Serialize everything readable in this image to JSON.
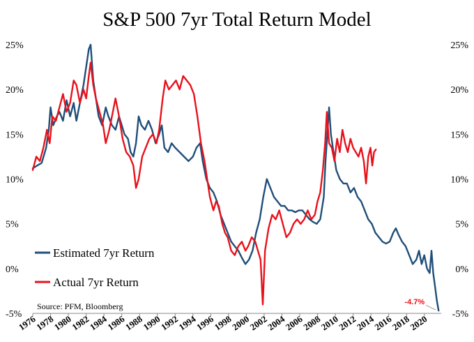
{
  "chart_data": {
    "type": "line",
    "title": "S&P 500 7yr Total Return Model",
    "source": "Source: PFM, Bloomberg",
    "xlabel": "",
    "ylabel": "",
    "ylim": [
      -5,
      25
    ],
    "xlim": [
      1976,
      2021.9
    ],
    "grid": false,
    "legend_position": "bottom-left",
    "y_ticks": [
      "-5%",
      "0%",
      "5%",
      "10%",
      "15%",
      "20%",
      "25%"
    ],
    "x_ticks": [
      "1976",
      "1978",
      "1980",
      "1982",
      "1984",
      "1986",
      "1988",
      "1990",
      "1992",
      "1994",
      "1996",
      "1998",
      "2000",
      "2002",
      "2004",
      "2006",
      "2008",
      "2010",
      "2012",
      "2014",
      "2016",
      "2018",
      "2020"
    ],
    "annotation": {
      "text": "-4.7%",
      "x": 2021.6,
      "y": -4.7,
      "color": "#e8111b"
    },
    "series": [
      {
        "name": "Estimated 7yr Return",
        "color": "#1f4e79",
        "points": [
          [
            1976.0,
            11.2
          ],
          [
            1976.5,
            11.5
          ],
          [
            1977.0,
            11.8
          ],
          [
            1977.5,
            13.5
          ],
          [
            1977.8,
            15.5
          ],
          [
            1978.0,
            18.0
          ],
          [
            1978.3,
            16.0
          ],
          [
            1978.7,
            17.0
          ],
          [
            1979.0,
            17.5
          ],
          [
            1979.4,
            16.5
          ],
          [
            1979.8,
            18.8
          ],
          [
            1980.2,
            17.0
          ],
          [
            1980.6,
            18.5
          ],
          [
            1980.9,
            16.5
          ],
          [
            1981.3,
            18.5
          ],
          [
            1981.7,
            20.5
          ],
          [
            1982.0,
            22.5
          ],
          [
            1982.3,
            24.5
          ],
          [
            1982.5,
            25.0
          ],
          [
            1982.8,
            21.0
          ],
          [
            1983.1,
            19.0
          ],
          [
            1983.4,
            17.0
          ],
          [
            1983.8,
            16.0
          ],
          [
            1984.2,
            18.0
          ],
          [
            1984.5,
            17.0
          ],
          [
            1984.9,
            16.0
          ],
          [
            1985.3,
            15.5
          ],
          [
            1985.7,
            17.0
          ],
          [
            1986.0,
            16.0
          ],
          [
            1986.3,
            15.0
          ],
          [
            1986.7,
            14.5
          ],
          [
            1987.0,
            13.0
          ],
          [
            1987.3,
            12.5
          ],
          [
            1987.6,
            14.0
          ],
          [
            1987.9,
            17.0
          ],
          [
            1988.2,
            16.0
          ],
          [
            1988.6,
            15.5
          ],
          [
            1989.0,
            16.5
          ],
          [
            1989.4,
            15.5
          ],
          [
            1989.8,
            14.0
          ],
          [
            1990.2,
            15.0
          ],
          [
            1990.5,
            16.0
          ],
          [
            1990.8,
            13.5
          ],
          [
            1991.2,
            13.0
          ],
          [
            1991.6,
            14.0
          ],
          [
            1992.0,
            13.5
          ],
          [
            1992.5,
            13.0
          ],
          [
            1993.0,
            12.5
          ],
          [
            1993.5,
            12.0
          ],
          [
            1994.0,
            12.5
          ],
          [
            1994.4,
            13.5
          ],
          [
            1994.8,
            14.0
          ],
          [
            1995.1,
            12.0
          ],
          [
            1995.5,
            10.0
          ],
          [
            1995.9,
            9.0
          ],
          [
            1996.3,
            8.5
          ],
          [
            1996.7,
            7.5
          ],
          [
            1997.1,
            6.0
          ],
          [
            1997.5,
            5.0
          ],
          [
            1997.9,
            4.0
          ],
          [
            1998.3,
            3.0
          ],
          [
            1998.7,
            2.5
          ],
          [
            1999.1,
            2.0
          ],
          [
            1999.5,
            1.2
          ],
          [
            1999.9,
            0.5
          ],
          [
            2000.3,
            1.0
          ],
          [
            2000.7,
            2.0
          ],
          [
            2001.1,
            4.0
          ],
          [
            2001.5,
            5.5
          ],
          [
            2001.9,
            8.0
          ],
          [
            2002.3,
            10.0
          ],
          [
            2002.7,
            9.0
          ],
          [
            2003.1,
            8.0
          ],
          [
            2003.5,
            7.5
          ],
          [
            2003.9,
            7.0
          ],
          [
            2004.3,
            7.0
          ],
          [
            2004.7,
            6.5
          ],
          [
            2005.1,
            6.5
          ],
          [
            2005.5,
            6.3
          ],
          [
            2005.9,
            6.5
          ],
          [
            2006.3,
            6.5
          ],
          [
            2006.7,
            6.0
          ],
          [
            2007.1,
            5.5
          ],
          [
            2007.5,
            5.2
          ],
          [
            2007.9,
            5.0
          ],
          [
            2008.3,
            5.5
          ],
          [
            2008.7,
            8.0
          ],
          [
            2008.9,
            12.0
          ],
          [
            2009.1,
            15.0
          ],
          [
            2009.3,
            18.0
          ],
          [
            2009.5,
            15.0
          ],
          [
            2009.8,
            13.0
          ],
          [
            2010.1,
            11.0
          ],
          [
            2010.5,
            10.0
          ],
          [
            2010.9,
            9.5
          ],
          [
            2011.3,
            9.5
          ],
          [
            2011.7,
            8.5
          ],
          [
            2012.1,
            9.0
          ],
          [
            2012.5,
            8.0
          ],
          [
            2012.9,
            7.5
          ],
          [
            2013.3,
            6.5
          ],
          [
            2013.7,
            5.5
          ],
          [
            2014.1,
            5.0
          ],
          [
            2014.5,
            4.0
          ],
          [
            2014.9,
            3.5
          ],
          [
            2015.3,
            3.0
          ],
          [
            2015.7,
            2.8
          ],
          [
            2016.1,
            3.0
          ],
          [
            2016.5,
            4.0
          ],
          [
            2016.8,
            4.5
          ],
          [
            2017.1,
            3.8
          ],
          [
            2017.5,
            3.0
          ],
          [
            2017.9,
            2.5
          ],
          [
            2018.3,
            1.5
          ],
          [
            2018.7,
            0.5
          ],
          [
            2019.1,
            1.0
          ],
          [
            2019.4,
            2.0
          ],
          [
            2019.7,
            0.5
          ],
          [
            2020.0,
            1.5
          ],
          [
            2020.3,
            0.0
          ],
          [
            2020.6,
            -0.5
          ],
          [
            2020.8,
            2.0
          ],
          [
            2021.0,
            -0.5
          ],
          [
            2021.2,
            -2.0
          ],
          [
            2021.4,
            -3.5
          ],
          [
            2021.6,
            -4.7
          ]
        ]
      },
      {
        "name": "Actual 7yr Return",
        "color": "#e8111b",
        "points": [
          [
            1976.0,
            11.0
          ],
          [
            1976.4,
            12.5
          ],
          [
            1976.8,
            12.0
          ],
          [
            1977.2,
            13.5
          ],
          [
            1977.6,
            15.5
          ],
          [
            1977.9,
            14.0
          ],
          [
            1978.2,
            17.0
          ],
          [
            1978.6,
            16.5
          ],
          [
            1979.0,
            18.0
          ],
          [
            1979.4,
            19.5
          ],
          [
            1979.8,
            17.5
          ],
          [
            1980.2,
            18.5
          ],
          [
            1980.6,
            21.0
          ],
          [
            1980.9,
            20.5
          ],
          [
            1981.3,
            18.5
          ],
          [
            1981.7,
            20.0
          ],
          [
            1982.0,
            19.0
          ],
          [
            1982.3,
            21.5
          ],
          [
            1982.5,
            23.0
          ],
          [
            1982.8,
            20.5
          ],
          [
            1983.1,
            19.0
          ],
          [
            1983.5,
            17.5
          ],
          [
            1983.9,
            16.0
          ],
          [
            1984.2,
            14.0
          ],
          [
            1984.6,
            15.5
          ],
          [
            1985.0,
            17.5
          ],
          [
            1985.3,
            19.0
          ],
          [
            1985.7,
            17.0
          ],
          [
            1986.1,
            14.5
          ],
          [
            1986.5,
            13.0
          ],
          [
            1986.9,
            12.5
          ],
          [
            1987.3,
            11.5
          ],
          [
            1987.6,
            9.0
          ],
          [
            1987.9,
            10.0
          ],
          [
            1988.3,
            12.5
          ],
          [
            1988.7,
            13.5
          ],
          [
            1989.1,
            14.5
          ],
          [
            1989.5,
            15.0
          ],
          [
            1989.9,
            14.0
          ],
          [
            1990.2,
            15.5
          ],
          [
            1990.6,
            19.0
          ],
          [
            1990.9,
            21.0
          ],
          [
            1991.3,
            20.0
          ],
          [
            1991.7,
            20.5
          ],
          [
            1992.1,
            21.0
          ],
          [
            1992.5,
            20.0
          ],
          [
            1992.9,
            21.5
          ],
          [
            1993.3,
            21.0
          ],
          [
            1993.7,
            20.5
          ],
          [
            1994.1,
            19.5
          ],
          [
            1994.5,
            17.0
          ],
          [
            1994.9,
            14.0
          ],
          [
            1995.3,
            12.0
          ],
          [
            1995.6,
            10.0
          ],
          [
            1995.9,
            8.0
          ],
          [
            1996.3,
            6.5
          ],
          [
            1996.6,
            7.5
          ],
          [
            1996.9,
            7.0
          ],
          [
            1997.3,
            5.0
          ],
          [
            1997.6,
            4.0
          ],
          [
            1997.9,
            3.5
          ],
          [
            1998.3,
            2.0
          ],
          [
            1998.7,
            1.5
          ],
          [
            1999.1,
            2.5
          ],
          [
            1999.5,
            3.0
          ],
          [
            1999.9,
            2.0
          ],
          [
            2000.2,
            2.5
          ],
          [
            2000.6,
            3.5
          ],
          [
            2001.0,
            3.0
          ],
          [
            2001.3,
            2.0
          ],
          [
            2001.6,
            1.0
          ],
          [
            2001.85,
            -4.0
          ],
          [
            2002.1,
            2.0
          ],
          [
            2002.5,
            4.5
          ],
          [
            2002.9,
            6.0
          ],
          [
            2003.3,
            5.5
          ],
          [
            2003.7,
            6.5
          ],
          [
            2004.1,
            5.0
          ],
          [
            2004.5,
            3.5
          ],
          [
            2004.9,
            4.0
          ],
          [
            2005.3,
            5.0
          ],
          [
            2005.7,
            5.5
          ],
          [
            2006.1,
            5.0
          ],
          [
            2006.5,
            5.5
          ],
          [
            2006.9,
            6.5
          ],
          [
            2007.3,
            5.5
          ],
          [
            2007.7,
            6.0
          ],
          [
            2008.0,
            7.5
          ],
          [
            2008.3,
            8.5
          ],
          [
            2008.6,
            11.0
          ],
          [
            2008.85,
            14.0
          ],
          [
            2009.05,
            17.5
          ],
          [
            2009.3,
            14.0
          ],
          [
            2009.6,
            13.5
          ],
          [
            2009.9,
            12.0
          ],
          [
            2010.2,
            14.5
          ],
          [
            2010.5,
            13.0
          ],
          [
            2010.8,
            15.5
          ],
          [
            2011.1,
            14.0
          ],
          [
            2011.4,
            13.0
          ],
          [
            2011.7,
            14.5
          ],
          [
            2012.0,
            13.5
          ],
          [
            2012.3,
            13.0
          ],
          [
            2012.6,
            12.5
          ],
          [
            2012.9,
            13.5
          ],
          [
            2013.2,
            12.0
          ],
          [
            2013.45,
            9.5
          ],
          [
            2013.7,
            12.5
          ],
          [
            2013.95,
            13.5
          ],
          [
            2014.15,
            11.5
          ],
          [
            2014.35,
            13.0
          ],
          [
            2014.55,
            13.3
          ]
        ]
      }
    ]
  }
}
